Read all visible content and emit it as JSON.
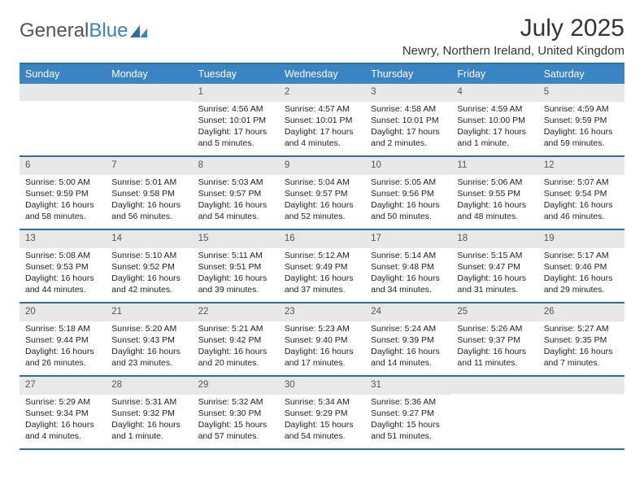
{
  "logo": {
    "text1": "General",
    "text2": "Blue"
  },
  "title": "July 2025",
  "location": "Newry, Northern Ireland, United Kingdom",
  "colors": {
    "header_bg": "#3b84c4",
    "header_border": "#2b6fa8",
    "daynum_bg": "#e8e8e8",
    "page_bg": "#ffffff",
    "text": "#222222",
    "logo_gray": "#555555",
    "logo_blue": "#3b82c4"
  },
  "typography": {
    "title_fontsize": 30,
    "location_fontsize": 15,
    "dayheader_fontsize": 12.5,
    "daynum_fontsize": 11.5,
    "cell_fontsize": 10.5
  },
  "day_names": [
    "Sunday",
    "Monday",
    "Tuesday",
    "Wednesday",
    "Thursday",
    "Friday",
    "Saturday"
  ],
  "weeks": [
    [
      {
        "n": "",
        "sr": "",
        "ss": "",
        "dl": ""
      },
      {
        "n": "",
        "sr": "",
        "ss": "",
        "dl": ""
      },
      {
        "n": "1",
        "sr": "Sunrise: 4:56 AM",
        "ss": "Sunset: 10:01 PM",
        "dl": "Daylight: 17 hours and 5 minutes."
      },
      {
        "n": "2",
        "sr": "Sunrise: 4:57 AM",
        "ss": "Sunset: 10:01 PM",
        "dl": "Daylight: 17 hours and 4 minutes."
      },
      {
        "n": "3",
        "sr": "Sunrise: 4:58 AM",
        "ss": "Sunset: 10:01 PM",
        "dl": "Daylight: 17 hours and 2 minutes."
      },
      {
        "n": "4",
        "sr": "Sunrise: 4:59 AM",
        "ss": "Sunset: 10:00 PM",
        "dl": "Daylight: 17 hours and 1 minute."
      },
      {
        "n": "5",
        "sr": "Sunrise: 4:59 AM",
        "ss": "Sunset: 9:59 PM",
        "dl": "Daylight: 16 hours and 59 minutes."
      }
    ],
    [
      {
        "n": "6",
        "sr": "Sunrise: 5:00 AM",
        "ss": "Sunset: 9:59 PM",
        "dl": "Daylight: 16 hours and 58 minutes."
      },
      {
        "n": "7",
        "sr": "Sunrise: 5:01 AM",
        "ss": "Sunset: 9:58 PM",
        "dl": "Daylight: 16 hours and 56 minutes."
      },
      {
        "n": "8",
        "sr": "Sunrise: 5:03 AM",
        "ss": "Sunset: 9:57 PM",
        "dl": "Daylight: 16 hours and 54 minutes."
      },
      {
        "n": "9",
        "sr": "Sunrise: 5:04 AM",
        "ss": "Sunset: 9:57 PM",
        "dl": "Daylight: 16 hours and 52 minutes."
      },
      {
        "n": "10",
        "sr": "Sunrise: 5:05 AM",
        "ss": "Sunset: 9:56 PM",
        "dl": "Daylight: 16 hours and 50 minutes."
      },
      {
        "n": "11",
        "sr": "Sunrise: 5:06 AM",
        "ss": "Sunset: 9:55 PM",
        "dl": "Daylight: 16 hours and 48 minutes."
      },
      {
        "n": "12",
        "sr": "Sunrise: 5:07 AM",
        "ss": "Sunset: 9:54 PM",
        "dl": "Daylight: 16 hours and 46 minutes."
      }
    ],
    [
      {
        "n": "13",
        "sr": "Sunrise: 5:08 AM",
        "ss": "Sunset: 9:53 PM",
        "dl": "Daylight: 16 hours and 44 minutes."
      },
      {
        "n": "14",
        "sr": "Sunrise: 5:10 AM",
        "ss": "Sunset: 9:52 PM",
        "dl": "Daylight: 16 hours and 42 minutes."
      },
      {
        "n": "15",
        "sr": "Sunrise: 5:11 AM",
        "ss": "Sunset: 9:51 PM",
        "dl": "Daylight: 16 hours and 39 minutes."
      },
      {
        "n": "16",
        "sr": "Sunrise: 5:12 AM",
        "ss": "Sunset: 9:49 PM",
        "dl": "Daylight: 16 hours and 37 minutes."
      },
      {
        "n": "17",
        "sr": "Sunrise: 5:14 AM",
        "ss": "Sunset: 9:48 PM",
        "dl": "Daylight: 16 hours and 34 minutes."
      },
      {
        "n": "18",
        "sr": "Sunrise: 5:15 AM",
        "ss": "Sunset: 9:47 PM",
        "dl": "Daylight: 16 hours and 31 minutes."
      },
      {
        "n": "19",
        "sr": "Sunrise: 5:17 AM",
        "ss": "Sunset: 9:46 PM",
        "dl": "Daylight: 16 hours and 29 minutes."
      }
    ],
    [
      {
        "n": "20",
        "sr": "Sunrise: 5:18 AM",
        "ss": "Sunset: 9:44 PM",
        "dl": "Daylight: 16 hours and 26 minutes."
      },
      {
        "n": "21",
        "sr": "Sunrise: 5:20 AM",
        "ss": "Sunset: 9:43 PM",
        "dl": "Daylight: 16 hours and 23 minutes."
      },
      {
        "n": "22",
        "sr": "Sunrise: 5:21 AM",
        "ss": "Sunset: 9:42 PM",
        "dl": "Daylight: 16 hours and 20 minutes."
      },
      {
        "n": "23",
        "sr": "Sunrise: 5:23 AM",
        "ss": "Sunset: 9:40 PM",
        "dl": "Daylight: 16 hours and 17 minutes."
      },
      {
        "n": "24",
        "sr": "Sunrise: 5:24 AM",
        "ss": "Sunset: 9:39 PM",
        "dl": "Daylight: 16 hours and 14 minutes."
      },
      {
        "n": "25",
        "sr": "Sunrise: 5:26 AM",
        "ss": "Sunset: 9:37 PM",
        "dl": "Daylight: 16 hours and 11 minutes."
      },
      {
        "n": "26",
        "sr": "Sunrise: 5:27 AM",
        "ss": "Sunset: 9:35 PM",
        "dl": "Daylight: 16 hours and 7 minutes."
      }
    ],
    [
      {
        "n": "27",
        "sr": "Sunrise: 5:29 AM",
        "ss": "Sunset: 9:34 PM",
        "dl": "Daylight: 16 hours and 4 minutes."
      },
      {
        "n": "28",
        "sr": "Sunrise: 5:31 AM",
        "ss": "Sunset: 9:32 PM",
        "dl": "Daylight: 16 hours and 1 minute."
      },
      {
        "n": "29",
        "sr": "Sunrise: 5:32 AM",
        "ss": "Sunset: 9:30 PM",
        "dl": "Daylight: 15 hours and 57 minutes."
      },
      {
        "n": "30",
        "sr": "Sunrise: 5:34 AM",
        "ss": "Sunset: 9:29 PM",
        "dl": "Daylight: 15 hours and 54 minutes."
      },
      {
        "n": "31",
        "sr": "Sunrise: 5:36 AM",
        "ss": "Sunset: 9:27 PM",
        "dl": "Daylight: 15 hours and 51 minutes."
      },
      {
        "n": "",
        "sr": "",
        "ss": "",
        "dl": ""
      },
      {
        "n": "",
        "sr": "",
        "ss": "",
        "dl": ""
      }
    ]
  ]
}
